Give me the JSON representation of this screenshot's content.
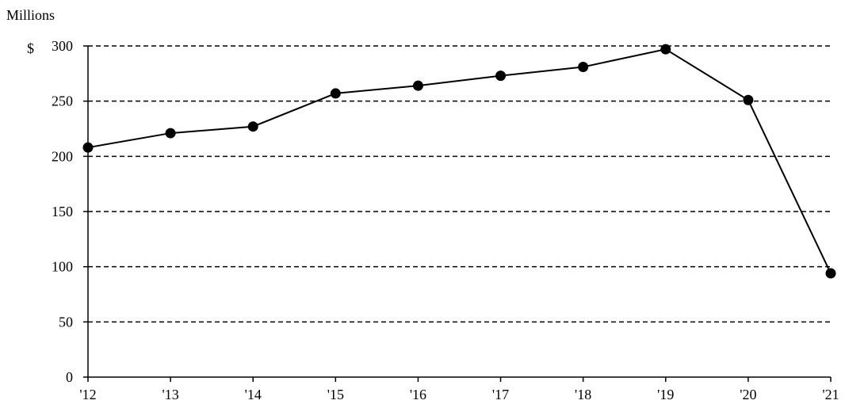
{
  "chart_data": {
    "type": "line",
    "unit_label": "Millions",
    "currency_symbol": "$",
    "categories": [
      "'12",
      "'13",
      "'14",
      "'15",
      "'16",
      "'17",
      "'18",
      "'19",
      "'20",
      "'21"
    ],
    "series": [
      {
        "values": [
          208,
          221,
          227,
          257,
          264,
          273,
          281,
          297,
          251,
          94
        ]
      }
    ],
    "ylim": [
      0,
      300
    ],
    "yticks": [
      0,
      50,
      100,
      150,
      200,
      250,
      300
    ],
    "ytick_labels": [
      "0",
      "50",
      "100",
      "150",
      "200",
      "250",
      "300"
    ],
    "grid": "horizontal dashed",
    "colors": {
      "line": "#000000",
      "marker": "#000000",
      "grid": "#000000"
    }
  }
}
